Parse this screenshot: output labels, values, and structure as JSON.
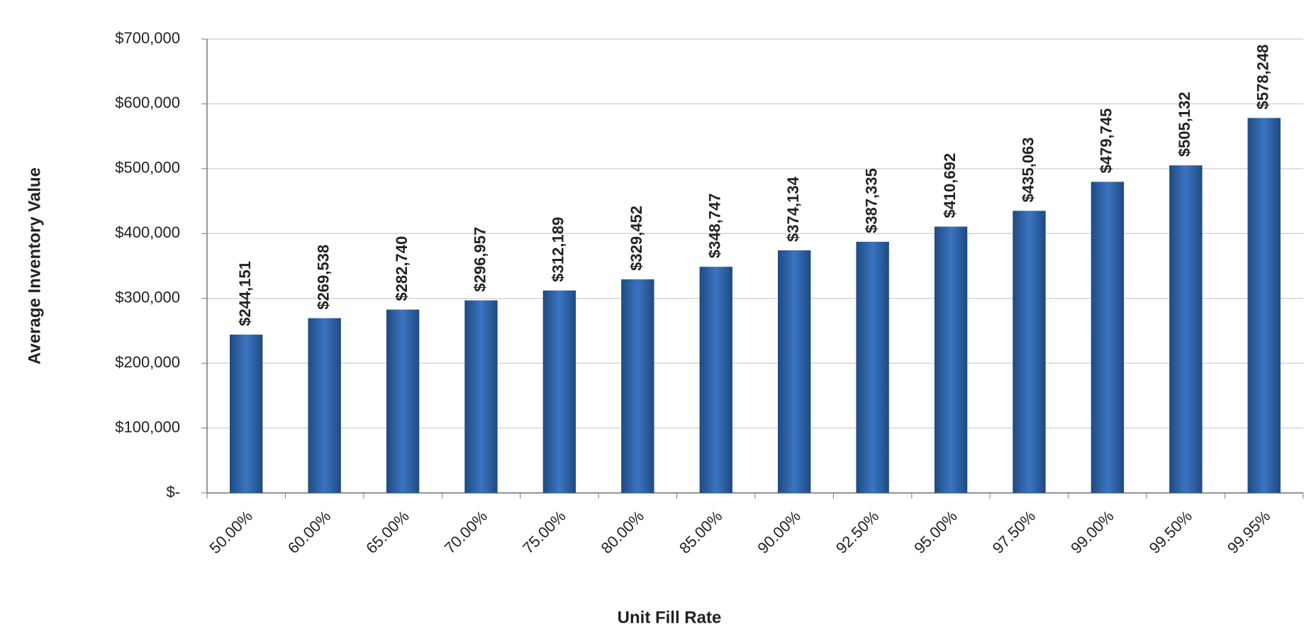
{
  "chart_data": {
    "type": "bar",
    "x_label": "Unit Fill Rate",
    "y_label": "Average Inventory Value",
    "categories": [
      "50.00%",
      "60.00%",
      "65.00%",
      "70.00%",
      "75.00%",
      "80.00%",
      "85.00%",
      "90.00%",
      "92.50%",
      "95.00%",
      "97.50%",
      "99.00%",
      "99.50%",
      "99.95%"
    ],
    "values": [
      244151,
      269538,
      282740,
      296957,
      312189,
      329452,
      348747,
      374134,
      387335,
      410692,
      435063,
      479745,
      505132,
      578248
    ],
    "value_labels": [
      "$244,151",
      "$269,538",
      "$282,740",
      "$296,957",
      "$312,189",
      "$329,452",
      "$348,747",
      "$374,134",
      "$387,335",
      "$410,692",
      "$435,063",
      "$479,745",
      "$505,132",
      "$578,248"
    ],
    "color": "#3a74c2",
    "ylim": [
      0,
      700000
    ],
    "yticks": [
      {
        "value": 0,
        "label": "$-"
      },
      {
        "value": 100000,
        "label": "$100,000"
      },
      {
        "value": 200000,
        "label": "$200,000"
      },
      {
        "value": 300000,
        "label": "$300,000"
      },
      {
        "value": 400000,
        "label": "$400,000"
      },
      {
        "value": 500000,
        "label": "$500,000"
      },
      {
        "value": 600000,
        "label": "$600,000"
      },
      {
        "value": 700000,
        "label": "$700,000"
      }
    ],
    "grid": true
  }
}
